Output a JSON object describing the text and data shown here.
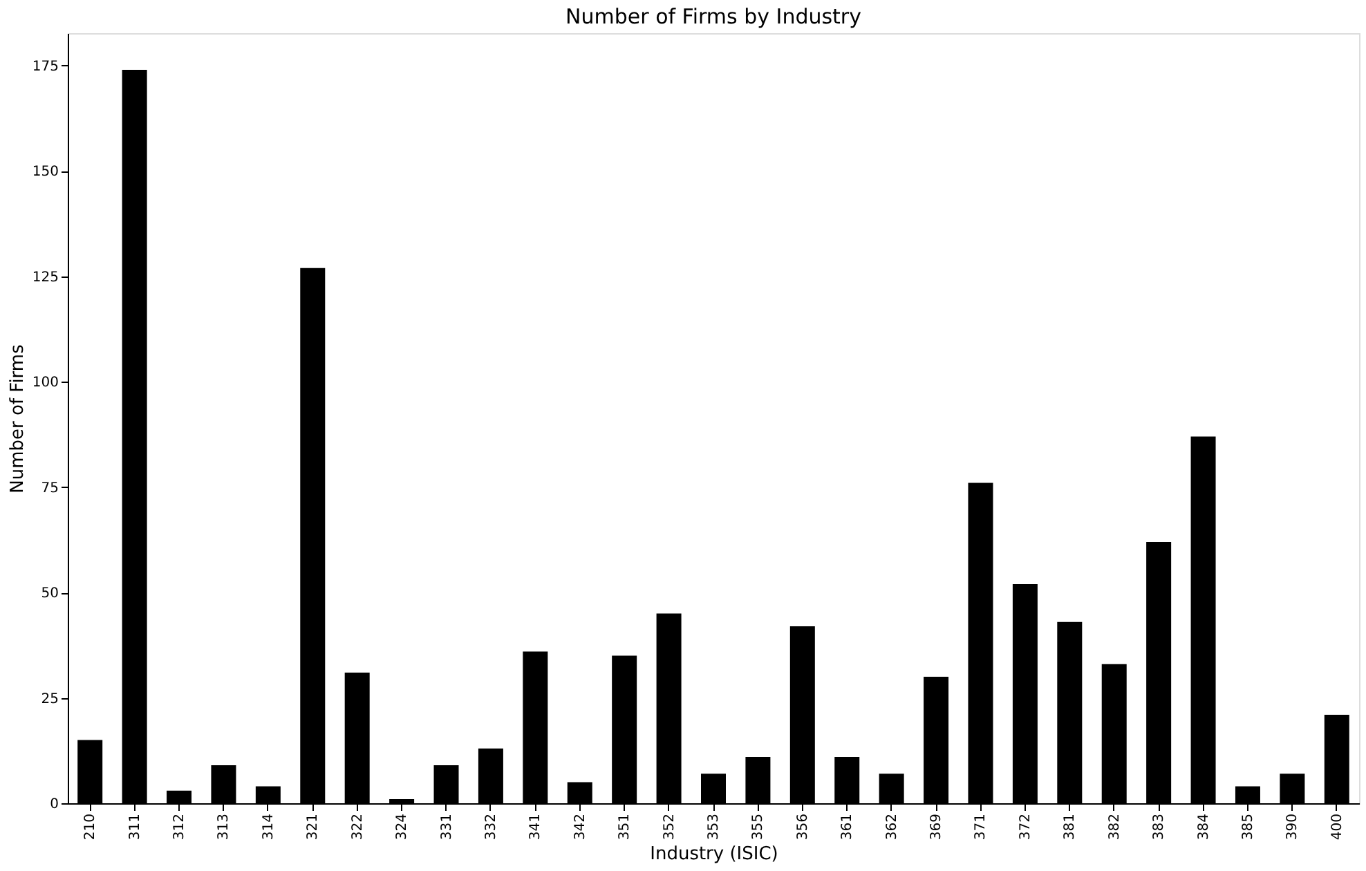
{
  "chart_data": {
    "type": "bar",
    "title": "Number of Firms by Industry",
    "xlabel": "Industry (ISIC)",
    "ylabel": "Number of Firms",
    "categories": [
      "210",
      "311",
      "312",
      "313",
      "314",
      "321",
      "322",
      "324",
      "331",
      "332",
      "341",
      "342",
      "351",
      "352",
      "353",
      "355",
      "356",
      "361",
      "362",
      "369",
      "371",
      "372",
      "381",
      "382",
      "383",
      "384",
      "385",
      "390",
      "400"
    ],
    "values": [
      15,
      174,
      3,
      9,
      4,
      127,
      31,
      1,
      9,
      13,
      36,
      5,
      35,
      45,
      7,
      11,
      42,
      11,
      7,
      30,
      76,
      52,
      43,
      33,
      62,
      87,
      4,
      7,
      21
    ],
    "color": "#000000",
    "ylim": [
      0,
      182.7
    ],
    "yticks": [
      0,
      25,
      50,
      75,
      100,
      125,
      150,
      175
    ],
    "grid": false
  }
}
